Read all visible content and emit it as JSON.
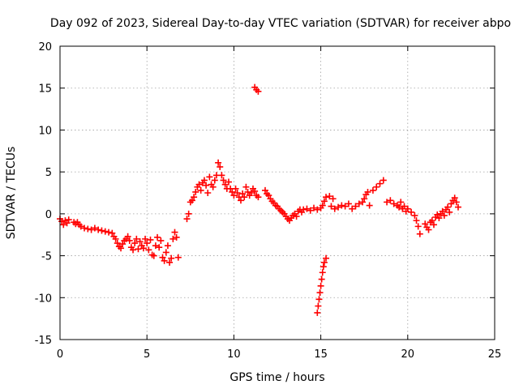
{
  "chart_data": {
    "type": "scatter",
    "title": "Day 092 of 2023, Sidereal Day-to-day VTEC variation (SDTVAR) for receiver abpo",
    "xlabel": "GPS time / hours",
    "ylabel": "SDTVAR / TECUs",
    "xlim": [
      0,
      25
    ],
    "ylim": [
      -15,
      20
    ],
    "xticks": [
      0,
      5,
      10,
      15,
      20,
      25
    ],
    "yticks": [
      -15,
      -10,
      -5,
      0,
      5,
      10,
      15,
      20
    ],
    "grid": true,
    "marker": "+",
    "color": "#ff0000",
    "series": [
      {
        "name": "SDTVAR",
        "points": [
          [
            0.0,
            -0.6
          ],
          [
            0.1,
            -0.9
          ],
          [
            0.2,
            -1.3
          ],
          [
            0.3,
            -0.8
          ],
          [
            0.4,
            -1.1
          ],
          [
            0.5,
            -0.7
          ],
          [
            0.8,
            -1.0
          ],
          [
            0.9,
            -1.2
          ],
          [
            1.0,
            -1.0
          ],
          [
            1.1,
            -1.3
          ],
          [
            1.2,
            -1.5
          ],
          [
            1.4,
            -1.7
          ],
          [
            1.6,
            -1.8
          ],
          [
            1.8,
            -1.9
          ],
          [
            2.0,
            -1.7
          ],
          [
            2.2,
            -1.9
          ],
          [
            2.4,
            -2.0
          ],
          [
            2.6,
            -2.1
          ],
          [
            2.8,
            -2.2
          ],
          [
            3.0,
            -2.3
          ],
          [
            3.1,
            -2.7
          ],
          [
            3.2,
            -3.0
          ],
          [
            3.3,
            -3.5
          ],
          [
            3.4,
            -3.9
          ],
          [
            3.5,
            -4.1
          ],
          [
            3.6,
            -3.6
          ],
          [
            3.7,
            -3.2
          ],
          [
            3.8,
            -3.0
          ],
          [
            3.9,
            -2.7
          ],
          [
            4.0,
            -3.2
          ],
          [
            4.1,
            -4.0
          ],
          [
            4.2,
            -4.3
          ],
          [
            4.3,
            -3.5
          ],
          [
            4.4,
            -3.0
          ],
          [
            4.5,
            -4.2
          ],
          [
            4.6,
            -3.3
          ],
          [
            4.7,
            -3.8
          ],
          [
            4.8,
            -4.1
          ],
          [
            4.9,
            -3.0
          ],
          [
            5.0,
            -3.5
          ],
          [
            5.1,
            -4.3
          ],
          [
            5.2,
            -3.1
          ],
          [
            5.3,
            -4.9
          ],
          [
            5.4,
            -5.0
          ],
          [
            5.5,
            -3.8
          ],
          [
            5.6,
            -2.8
          ],
          [
            5.7,
            -4.0
          ],
          [
            5.8,
            -3.2
          ],
          [
            5.9,
            -5.2
          ],
          [
            6.0,
            -5.6
          ],
          [
            6.1,
            -4.6
          ],
          [
            6.2,
            -3.8
          ],
          [
            6.3,
            -5.8
          ],
          [
            6.4,
            -5.3
          ],
          [
            6.5,
            -3.0
          ],
          [
            6.6,
            -2.2
          ],
          [
            6.7,
            -2.8
          ],
          [
            6.8,
            -5.2
          ],
          [
            7.3,
            -0.6
          ],
          [
            7.4,
            0.0
          ],
          [
            7.5,
            1.4
          ],
          [
            7.6,
            1.6
          ],
          [
            7.7,
            2.0
          ],
          [
            7.8,
            2.6
          ],
          [
            7.9,
            3.2
          ],
          [
            8.0,
            3.5
          ],
          [
            8.1,
            2.8
          ],
          [
            8.2,
            3.7
          ],
          [
            8.3,
            4.0
          ],
          [
            8.4,
            3.4
          ],
          [
            8.5,
            2.5
          ],
          [
            8.6,
            4.4
          ],
          [
            8.7,
            3.5
          ],
          [
            8.8,
            3.2
          ],
          [
            8.9,
            4.0
          ],
          [
            9.0,
            4.6
          ],
          [
            9.1,
            6.1
          ],
          [
            9.2,
            5.6
          ],
          [
            9.3,
            4.6
          ],
          [
            9.4,
            4.0
          ],
          [
            9.5,
            3.5
          ],
          [
            9.6,
            3.0
          ],
          [
            9.7,
            3.8
          ],
          [
            9.8,
            3.0
          ],
          [
            9.9,
            2.6
          ],
          [
            10.0,
            2.2
          ],
          [
            10.1,
            3.0
          ],
          [
            10.2,
            2.5
          ],
          [
            10.3,
            2.0
          ],
          [
            10.4,
            1.6
          ],
          [
            10.5,
            2.4
          ],
          [
            10.6,
            2.0
          ],
          [
            10.7,
            3.2
          ],
          [
            10.8,
            2.6
          ],
          [
            10.9,
            2.2
          ],
          [
            11.0,
            2.5
          ],
          [
            11.1,
            3.0
          ],
          [
            11.2,
            2.7
          ],
          [
            11.3,
            2.2
          ],
          [
            11.4,
            2.0
          ],
          [
            11.2,
            15.1
          ],
          [
            11.3,
            14.8
          ],
          [
            11.4,
            14.6
          ],
          [
            11.8,
            2.8
          ],
          [
            11.9,
            2.4
          ],
          [
            12.0,
            2.2
          ],
          [
            12.1,
            1.8
          ],
          [
            12.2,
            1.5
          ],
          [
            12.3,
            1.3
          ],
          [
            12.4,
            1.0
          ],
          [
            12.5,
            0.9
          ],
          [
            12.6,
            0.6
          ],
          [
            12.7,
            0.4
          ],
          [
            12.8,
            0.2
          ],
          [
            12.9,
            0.0
          ],
          [
            13.0,
            -0.3
          ],
          [
            13.1,
            -0.6
          ],
          [
            13.2,
            -0.8
          ],
          [
            13.3,
            -0.5
          ],
          [
            13.4,
            -0.2
          ],
          [
            13.5,
            0.0
          ],
          [
            13.6,
            -0.3
          ],
          [
            13.7,
            0.3
          ],
          [
            13.8,
            0.5
          ],
          [
            13.9,
            0.2
          ],
          [
            14.0,
            0.5
          ],
          [
            14.2,
            0.6
          ],
          [
            14.4,
            0.4
          ],
          [
            14.6,
            0.7
          ],
          [
            14.8,
            0.5
          ],
          [
            15.0,
            0.7
          ],
          [
            15.1,
            1.0
          ],
          [
            15.2,
            1.5
          ],
          [
            15.3,
            2.0
          ],
          [
            15.5,
            2.1
          ],
          [
            15.6,
            0.9
          ],
          [
            15.7,
            1.8
          ],
          [
            15.8,
            0.6
          ],
          [
            16.0,
            0.8
          ],
          [
            16.2,
            1.0
          ],
          [
            16.4,
            0.9
          ],
          [
            16.6,
            1.2
          ],
          [
            16.8,
            0.6
          ],
          [
            17.0,
            0.9
          ],
          [
            17.2,
            1.2
          ],
          [
            17.4,
            1.4
          ],
          [
            17.5,
            1.8
          ],
          [
            17.6,
            2.3
          ],
          [
            17.7,
            2.6
          ],
          [
            17.8,
            1.0
          ],
          [
            18.0,
            2.8
          ],
          [
            18.2,
            3.2
          ],
          [
            18.4,
            3.6
          ],
          [
            18.6,
            4.0
          ],
          [
            18.8,
            1.4
          ],
          [
            19.0,
            1.6
          ],
          [
            19.2,
            1.2
          ],
          [
            19.4,
            1.0
          ],
          [
            19.5,
            0.8
          ],
          [
            19.6,
            1.4
          ],
          [
            19.7,
            0.6
          ],
          [
            19.8,
            0.9
          ],
          [
            19.9,
            0.3
          ],
          [
            20.0,
            0.6
          ],
          [
            20.2,
            0.2
          ],
          [
            20.4,
            -0.2
          ],
          [
            20.5,
            -0.8
          ],
          [
            20.6,
            -1.5
          ],
          [
            20.7,
            -2.4
          ],
          [
            14.8,
            -11.8
          ],
          [
            14.85,
            -11.0
          ],
          [
            14.9,
            -10.2
          ],
          [
            14.95,
            -9.4
          ],
          [
            15.0,
            -8.6
          ],
          [
            15.05,
            -7.8
          ],
          [
            15.1,
            -7.0
          ],
          [
            15.15,
            -6.3
          ],
          [
            15.2,
            -5.8
          ],
          [
            15.3,
            -5.3
          ],
          [
            21.0,
            -1.2
          ],
          [
            21.1,
            -1.6
          ],
          [
            21.2,
            -1.9
          ],
          [
            21.3,
            -1.0
          ],
          [
            21.4,
            -0.8
          ],
          [
            21.5,
            -1.3
          ],
          [
            21.6,
            -0.4
          ],
          [
            21.7,
            -0.1
          ],
          [
            21.8,
            -0.5
          ],
          [
            21.9,
            0.0
          ],
          [
            22.0,
            0.3
          ],
          [
            22.1,
            -0.2
          ],
          [
            22.2,
            0.5
          ],
          [
            22.3,
            0.8
          ],
          [
            22.4,
            0.2
          ],
          [
            22.5,
            1.2
          ],
          [
            22.6,
            1.6
          ],
          [
            22.7,
            1.9
          ],
          [
            22.8,
            1.4
          ],
          [
            22.9,
            0.8
          ]
        ]
      }
    ]
  }
}
